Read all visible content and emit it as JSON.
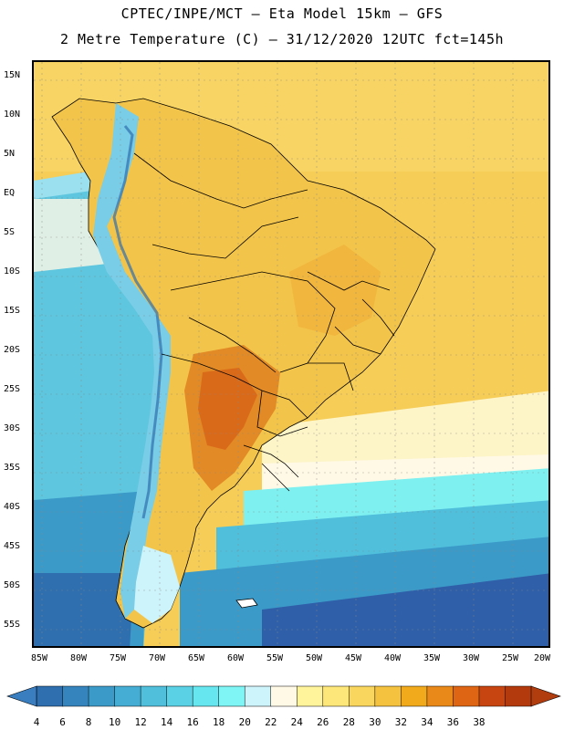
{
  "title": {
    "line1": "CPTEC/INPE/MCT –  Eta Model 15km – GFS",
    "line2": "2 Metre Temperature (C) – 31/12/2020 12UTC fct=145h"
  },
  "axes": {
    "lat_labels": [
      "15N",
      "10N",
      "5N",
      "EQ",
      "5S",
      "10S",
      "15S",
      "20S",
      "25S",
      "30S",
      "35S",
      "40S",
      "45S",
      "50S",
      "55S"
    ],
    "lon_labels": [
      "85W",
      "80W",
      "75W",
      "70W",
      "65W",
      "60W",
      "55W",
      "50W",
      "45W",
      "40W",
      "35W",
      "30W",
      "25W",
      "20W"
    ]
  },
  "colorbar": {
    "labels": [
      "4",
      "6",
      "8",
      "10",
      "12",
      "14",
      "16",
      "18",
      "20",
      "22",
      "24",
      "26",
      "28",
      "30",
      "32",
      "34",
      "36",
      "38"
    ],
    "colors": [
      "#2f6faf",
      "#3584bd",
      "#3c9ac8",
      "#45add3",
      "#4fbfdc",
      "#5ad1e4",
      "#66e6ee",
      "#7ff5f5",
      "#cdf3fb",
      "#fff9e6",
      "#fff39c",
      "#fde77b",
      "#f9d65e",
      "#f4c23e",
      "#f0aa1c",
      "#e8891a",
      "#dd6513",
      "#c74510",
      "#b33a0c"
    ],
    "under_color": "#3a7ec0",
    "over_color": "#b13c0e"
  },
  "map": {
    "ocean_pacific_color": "#5ec6de",
    "ocean_atlantic_color": "#f6cd57",
    "land_color": "#f3c44a",
    "hot_core_color": "#e28a25",
    "andes_color": "#79cde6",
    "south_ocean_color": "#2f5fa8",
    "border_color": "#000000"
  }
}
